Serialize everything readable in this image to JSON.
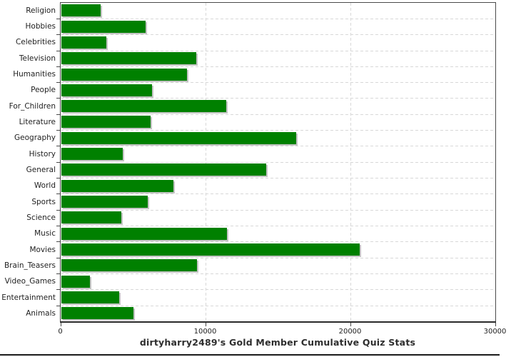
{
  "chart_data": {
    "type": "bar",
    "orientation": "horizontal",
    "title": "dirtyharry2489's Gold Member Cumulative Quiz Stats",
    "categories": [
      "Religion",
      "Hobbies",
      "Celebrities",
      "Television",
      "Humanities",
      "People",
      "For_Children",
      "Literature",
      "Geography",
      "History",
      "General",
      "World",
      "Sports",
      "Science",
      "Music",
      "Movies",
      "Brain_Teasers",
      "Video_Games",
      "Entertainment",
      "Animals"
    ],
    "values": [
      2700,
      5800,
      3100,
      9300,
      8650,
      6250,
      11400,
      6150,
      16200,
      4250,
      14150,
      7750,
      5950,
      4150,
      11450,
      20600,
      9350,
      1950,
      4000,
      4950
    ],
    "xlabel": "",
    "ylabel": "",
    "xlim": [
      0,
      30000
    ],
    "x_ticks": [
      0,
      10000,
      20000,
      30000
    ],
    "x_tick_labels": [
      "0",
      "10000",
      "20000",
      "30000"
    ],
    "grid": true,
    "legend": "none",
    "bar_color": "#008000",
    "shadow_color": "#c4c4c4",
    "grid_color": "#d8d8d8",
    "axis_color": "#4a4a4a",
    "text_color": "#1f1f1f"
  }
}
